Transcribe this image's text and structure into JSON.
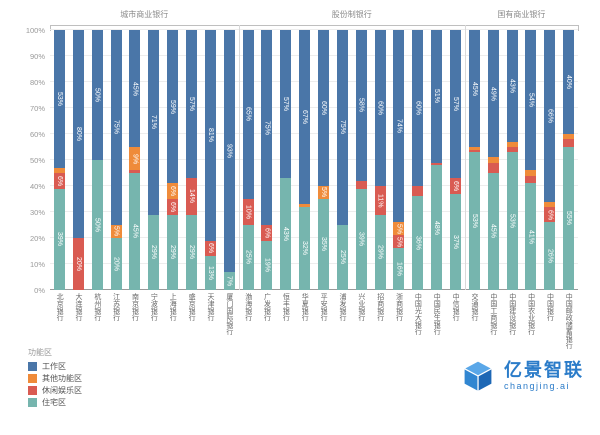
{
  "chart_data": {
    "type": "bar",
    "variant": "stacked-percent-column",
    "title": "",
    "xlabel": "",
    "ylabel": "",
    "ylim": [
      0,
      100
    ],
    "grid": true,
    "y_ticks": [
      "0%",
      "10%",
      "20%",
      "30%",
      "40%",
      "50%",
      "60%",
      "70%",
      "80%",
      "90%",
      "100%"
    ],
    "legend_title": "功能区",
    "legend_position": "bottom-left",
    "label_min_value": 5,
    "series_bottom_to_top": [
      "住宅区",
      "休闲娱乐区",
      "其他功能区",
      "工作区"
    ],
    "legend": [
      {
        "label": "工作区",
        "color": "#4a76a8"
      },
      {
        "label": "其他功能区",
        "color": "#ef8b3a"
      },
      {
        "label": "休闲娱乐区",
        "color": "#d95b52"
      },
      {
        "label": "住宅区",
        "color": "#76b5ae"
      }
    ],
    "groups": [
      {
        "label": "城市商业银行",
        "banks": [
          {
            "name": "北京银行",
            "values": {
              "住宅区": 39,
              "休闲娱乐区": 6,
              "其他功能区": 2,
              "工作区": 53
            }
          },
          {
            "name": "大连银行",
            "values": {
              "住宅区": 0,
              "休闲娱乐区": 20,
              "其他功能区": 0,
              "工作区": 80
            }
          },
          {
            "name": "杭州银行",
            "values": {
              "住宅区": 50,
              "休闲娱乐区": 0,
              "其他功能区": 0,
              "工作区": 50
            }
          },
          {
            "name": "江苏银行",
            "values": {
              "住宅区": 20,
              "休闲娱乐区": 0,
              "其他功能区": 5,
              "工作区": 75
            }
          },
          {
            "name": "南京银行",
            "values": {
              "住宅区": 45,
              "休闲娱乐区": 1,
              "其他功能区": 9,
              "工作区": 45
            }
          },
          {
            "name": "宁波银行",
            "values": {
              "住宅区": 29,
              "休闲娱乐区": 0,
              "其他功能区": 0,
              "工作区": 71
            }
          },
          {
            "name": "上海银行",
            "values": {
              "住宅区": 29,
              "休闲娱乐区": 6,
              "其他功能区": 6,
              "工作区": 59
            }
          },
          {
            "name": "盛京银行",
            "values": {
              "住宅区": 29,
              "休闲娱乐区": 14,
              "其他功能区": 0,
              "工作区": 57
            }
          },
          {
            "name": "天津银行",
            "values": {
              "住宅区": 13,
              "休闲娱乐区": 6,
              "其他功能区": 0,
              "工作区": 81
            }
          },
          {
            "name": "厦门国际银行",
            "values": {
              "住宅区": 7,
              "休闲娱乐区": 0,
              "其他功能区": 0,
              "工作区": 93
            }
          }
        ]
      },
      {
        "label": "股份制银行",
        "banks": [
          {
            "name": "渤海银行",
            "values": {
              "住宅区": 25,
              "休闲娱乐区": 10,
              "其他功能区": 0,
              "工作区": 65
            }
          },
          {
            "name": "广发银行",
            "values": {
              "住宅区": 19,
              "休闲娱乐区": 6,
              "其他功能区": 0,
              "工作区": 75
            }
          },
          {
            "name": "恒丰银行",
            "values": {
              "住宅区": 43,
              "休闲娱乐区": 0,
              "其他功能区": 0,
              "工作区": 57
            }
          },
          {
            "name": "华夏银行",
            "values": {
              "住宅区": 32,
              "休闲娱乐区": 0,
              "其他功能区": 1,
              "工作区": 67
            }
          },
          {
            "name": "平安银行",
            "values": {
              "住宅区": 35,
              "休闲娱乐区": 0,
              "其他功能区": 5,
              "工作区": 60
            }
          },
          {
            "name": "浦发银行",
            "values": {
              "住宅区": 25,
              "休闲娱乐区": 0,
              "其他功能区": 0,
              "工作区": 75
            }
          },
          {
            "name": "兴业银行",
            "values": {
              "住宅区": 39,
              "休闲娱乐区": 3,
              "其他功能区": 0,
              "工作区": 58
            }
          },
          {
            "name": "招商银行",
            "values": {
              "住宅区": 29,
              "休闲娱乐区": 11,
              "其他功能区": 0,
              "工作区": 60
            }
          },
          {
            "name": "浙商银行",
            "values": {
              "住宅区": 16,
              "休闲娱乐区": 5,
              "其他功能区": 5,
              "工作区": 74
            }
          },
          {
            "name": "中国光大银行",
            "values": {
              "住宅区": 36,
              "休闲娱乐区": 4,
              "其他功能区": 0,
              "工作区": 60
            }
          },
          {
            "name": "中国民生银行",
            "values": {
              "住宅区": 48,
              "休闲娱乐区": 1,
              "其他功能区": 0,
              "工作区": 51
            }
          },
          {
            "name": "中信银行",
            "values": {
              "住宅区": 37,
              "休闲娱乐区": 6,
              "其他功能区": 0,
              "工作区": 57
            }
          }
        ]
      },
      {
        "label": "国有商业银行",
        "banks": [
          {
            "name": "交通银行",
            "values": {
              "住宅区": 53,
              "休闲娱乐区": 1,
              "其他功能区": 1,
              "工作区": 45
            }
          },
          {
            "name": "中国工商银行",
            "values": {
              "住宅区": 45,
              "休闲娱乐区": 4,
              "其他功能区": 2,
              "工作区": 49
            }
          },
          {
            "name": "中国建设银行",
            "values": {
              "住宅区": 53,
              "休闲娱乐区": 2,
              "其他功能区": 2,
              "工作区": 43
            }
          },
          {
            "name": "中国农业银行",
            "values": {
              "住宅区": 41,
              "休闲娱乐区": 3,
              "其他功能区": 2,
              "工作区": 54
            }
          },
          {
            "name": "中国银行",
            "values": {
              "住宅区": 26,
              "休闲娱乐区": 6,
              "其他功能区": 2,
              "工作区": 66
            }
          },
          {
            "name": "中国邮政储蓄银行",
            "values": {
              "住宅区": 55,
              "休闲娱乐区": 3,
              "其他功能区": 2,
              "工作区": 40
            }
          }
        ]
      }
    ]
  },
  "branding": {
    "name": "亿景智联",
    "domain": "changjing.ai"
  }
}
